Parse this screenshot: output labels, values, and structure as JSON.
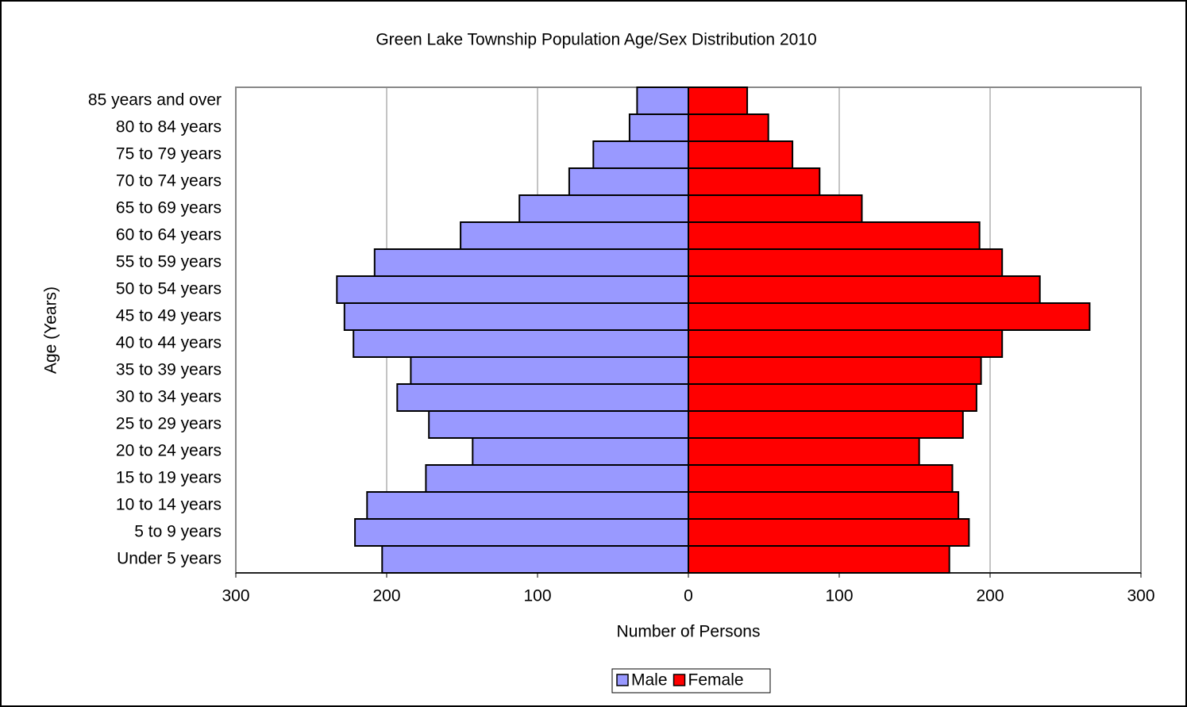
{
  "chart_data": {
    "type": "population_pyramid",
    "title": "Green Lake Township Population Age/Sex Distribution 2010",
    "x_label": "Number of Persons",
    "y_label": "Age (Years)",
    "categories": [
      "Under 5 years",
      "5 to 9 years",
      "10 to 14 years",
      "15 to 19 years",
      "20 to 24 years",
      "25 to 29 years",
      "30 to 34 years",
      "35 to 39 years",
      "40 to 44 years",
      "45 to 49 years",
      "50 to 54 years",
      "55 to 59 years",
      "60 to 64 years",
      "65 to 69 years",
      "70 to 74 years",
      "75 to 79 years",
      "80 to 84 years",
      "85 years and over"
    ],
    "series": [
      {
        "name": "Male",
        "color": "#9999ff",
        "values": [
          -203,
          -221,
          -213,
          -174,
          -143,
          -172,
          -193,
          -184,
          -222,
          -228,
          -233,
          -208,
          -151,
          -112,
          -79,
          -63,
          -39,
          -34
        ]
      },
      {
        "name": "Female",
        "color": "#ff0000",
        "values": [
          173,
          186,
          179,
          175,
          153,
          182,
          191,
          194,
          208,
          266,
          233,
          208,
          193,
          115,
          87,
          69,
          53,
          39
        ]
      }
    ],
    "xlim": [
      -300,
      300
    ],
    "xticks": [
      {
        "value": -300,
        "label": "300"
      },
      {
        "value": -200,
        "label": "200"
      },
      {
        "value": -100,
        "label": "100"
      },
      0,
      100,
      200,
      300
    ],
    "negative_tick_label_color": "#ff0000",
    "grid": true,
    "legend": "bottom"
  }
}
